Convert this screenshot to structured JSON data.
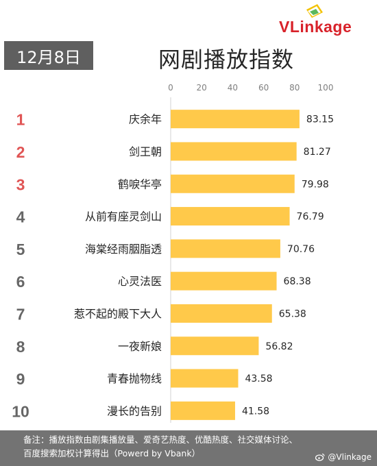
{
  "logo": {
    "v": "V",
    "rest": "Linkage"
  },
  "date": "12月8日",
  "title": "网剧播放指数",
  "footer": {
    "line1": "备注：播放指数由剧集播放量、爱奇艺热度、优酷热度、社交媒体讨论、",
    "line2": "百度搜索加权计算得出（Powerd by Vbank）"
  },
  "watermark": "@Vlinkage",
  "colors": {
    "bar": "#ffc94a",
    "rank_top": "#e05555",
    "rank_other": "#666666",
    "footer_bg": "#737373"
  },
  "chart_data": {
    "type": "bar",
    "orientation": "horizontal",
    "title": "网剧播放指数",
    "ranks": [
      "1",
      "2",
      "3",
      "4",
      "5",
      "6",
      "7",
      "8",
      "9",
      "10"
    ],
    "categories": [
      "庆余年",
      "剑王朝",
      "鹤唳华亭",
      "从前有座灵剑山",
      "海棠经雨胭脂透",
      "心灵法医",
      "惹不起的殿下大人",
      "一夜新娘",
      "青春抛物线",
      "漫长的告别"
    ],
    "values": [
      83.15,
      81.27,
      79.98,
      76.79,
      70.76,
      68.38,
      65.38,
      56.82,
      43.58,
      41.58
    ],
    "value_labels": [
      "83.15",
      "81.27",
      "79.98",
      "76.79",
      "70.76",
      "68.38",
      "65.38",
      "56.82",
      "43.58",
      "41.58"
    ],
    "xlim": [
      0,
      100
    ],
    "xticks": [
      "0",
      "20",
      "40",
      "60",
      "80",
      "100"
    ],
    "xtick_values": [
      0,
      20,
      40,
      60,
      80,
      100
    ],
    "xaxis_position": "top",
    "grid": false
  }
}
